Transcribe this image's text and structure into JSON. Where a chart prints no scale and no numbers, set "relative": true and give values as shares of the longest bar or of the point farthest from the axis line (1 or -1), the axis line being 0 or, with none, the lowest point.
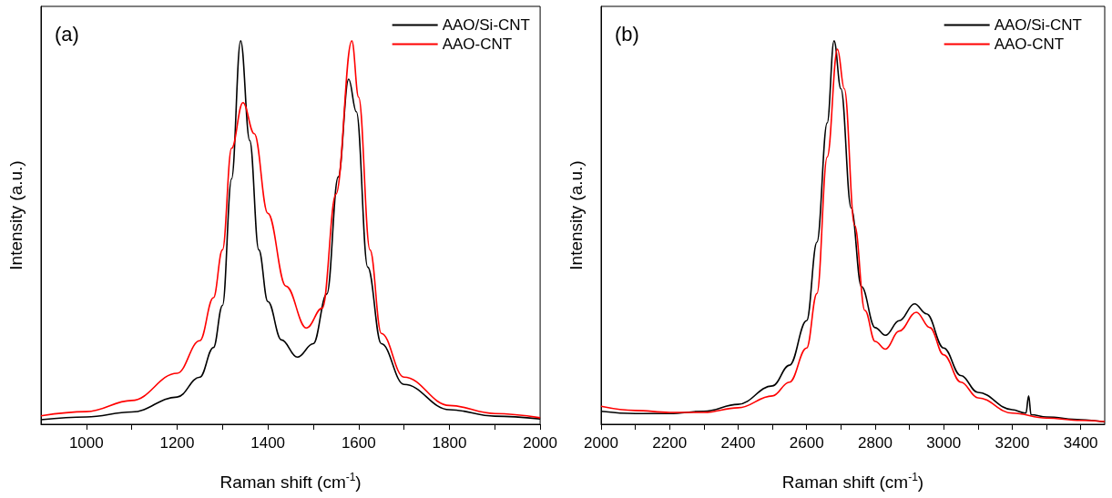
{
  "chart_data": [
    {
      "type": "line",
      "annotations": [
        "(a)"
      ],
      "xlabel": "Raman shift (cm$^{-1}$)",
      "ylabel": "Intensity (a.u.)",
      "relative": true,
      "xlim": [
        900,
        2000
      ],
      "xticks": [
        1000,
        {
          "value": 1100,
          "label": null
        },
        1200,
        {
          "value": 1300,
          "label": null
        },
        1400,
        {
          "value": 1500,
          "label": null
        },
        1600,
        {
          "value": 1700,
          "label": null
        },
        1800,
        {
          "value": 1900,
          "label": null
        },
        2000
      ],
      "legend": "top right",
      "marker": "none",
      "line_style": "solid",
      "grid": false,
      "series": [
        {
          "name": "AAO/Si-CNT",
          "color": "#000000",
          "x": [
            900,
            1000,
            1100,
            1200,
            1250,
            1280,
            1300,
            1320,
            1340,
            1360,
            1380,
            1400,
            1430,
            1465,
            1500,
            1530,
            1555,
            1578,
            1595,
            1620,
            1650,
            1700,
            1800,
            1900,
            2000
          ],
          "values": [
            0.012,
            0.019,
            0.032,
            0.071,
            0.123,
            0.2,
            0.31,
            0.64,
            1.0,
            0.74,
            0.455,
            0.32,
            0.22,
            0.175,
            0.21,
            0.34,
            0.645,
            0.9,
            0.815,
            0.41,
            0.21,
            0.104,
            0.038,
            0.021,
            0.014
          ]
        },
        {
          "name": "AAO-CNT",
          "color": "#ff0000",
          "x": [
            900,
            1000,
            1100,
            1200,
            1250,
            1280,
            1300,
            1320,
            1345,
            1370,
            1400,
            1440,
            1485,
            1520,
            1550,
            1585,
            1600,
            1625,
            1650,
            1700,
            1800,
            1900,
            2000
          ],
          "values": [
            0.022,
            0.033,
            0.062,
            0.133,
            0.218,
            0.33,
            0.455,
            0.72,
            0.839,
            0.758,
            0.55,
            0.36,
            0.251,
            0.303,
            0.6,
            1.0,
            0.853,
            0.455,
            0.237,
            0.123,
            0.049,
            0.028,
            0.017
          ]
        }
      ]
    },
    {
      "type": "line",
      "annotations": [
        "(b)"
      ],
      "xlabel": "Raman shift (cm$^{-1}$)",
      "ylabel": "Intensity (a.u.)",
      "relative": true,
      "xlim": [
        2000,
        3470
      ],
      "xticks": [
        2000,
        {
          "value": 2100,
          "label": null
        },
        2200,
        {
          "value": 2300,
          "label": null
        },
        2400,
        {
          "value": 2500,
          "label": null
        },
        2600,
        {
          "value": 2700,
          "label": null
        },
        2800,
        {
          "value": 2900,
          "label": null
        },
        3000,
        {
          "value": 3100,
          "label": null
        },
        3200,
        {
          "value": 3300,
          "label": null
        },
        3400
      ],
      "legend": "top right",
      "marker": "none",
      "line_style": "solid",
      "grid": false,
      "series": [
        {
          "name": "AAO/Si-CNT",
          "color": "#000000",
          "x": [
            2000,
            2100,
            2200,
            2300,
            2400,
            2500,
            2550,
            2600,
            2630,
            2660,
            2680,
            2700,
            2730,
            2760,
            2800,
            2830,
            2870,
            2915,
            2950,
            3000,
            3050,
            3100,
            3200,
            3240,
            3248,
            3255,
            3300,
            3400,
            3470
          ],
          "values": [
            0.034,
            0.028,
            0.028,
            0.034,
            0.052,
            0.1,
            0.154,
            0.27,
            0.475,
            0.786,
            1.0,
            0.875,
            0.564,
            0.359,
            0.252,
            0.232,
            0.27,
            0.314,
            0.288,
            0.199,
            0.127,
            0.083,
            0.038,
            0.029,
            0.074,
            0.025,
            0.019,
            0.012,
            0.006
          ]
        },
        {
          "name": "AAO-CNT",
          "color": "#ff0000",
          "x": [
            2000,
            2100,
            2200,
            2300,
            2400,
            2500,
            2550,
            2600,
            2630,
            2660,
            2690,
            2710,
            2740,
            2770,
            2800,
            2830,
            2870,
            2920,
            2960,
            3000,
            3050,
            3100,
            3200,
            3300,
            3400,
            3470
          ],
          "values": [
            0.047,
            0.036,
            0.031,
            0.031,
            0.043,
            0.074,
            0.11,
            0.199,
            0.341,
            0.697,
            0.978,
            0.875,
            0.519,
            0.297,
            0.216,
            0.196,
            0.243,
            0.292,
            0.252,
            0.181,
            0.11,
            0.069,
            0.029,
            0.016,
            0.01,
            0.007
          ]
        }
      ]
    }
  ]
}
